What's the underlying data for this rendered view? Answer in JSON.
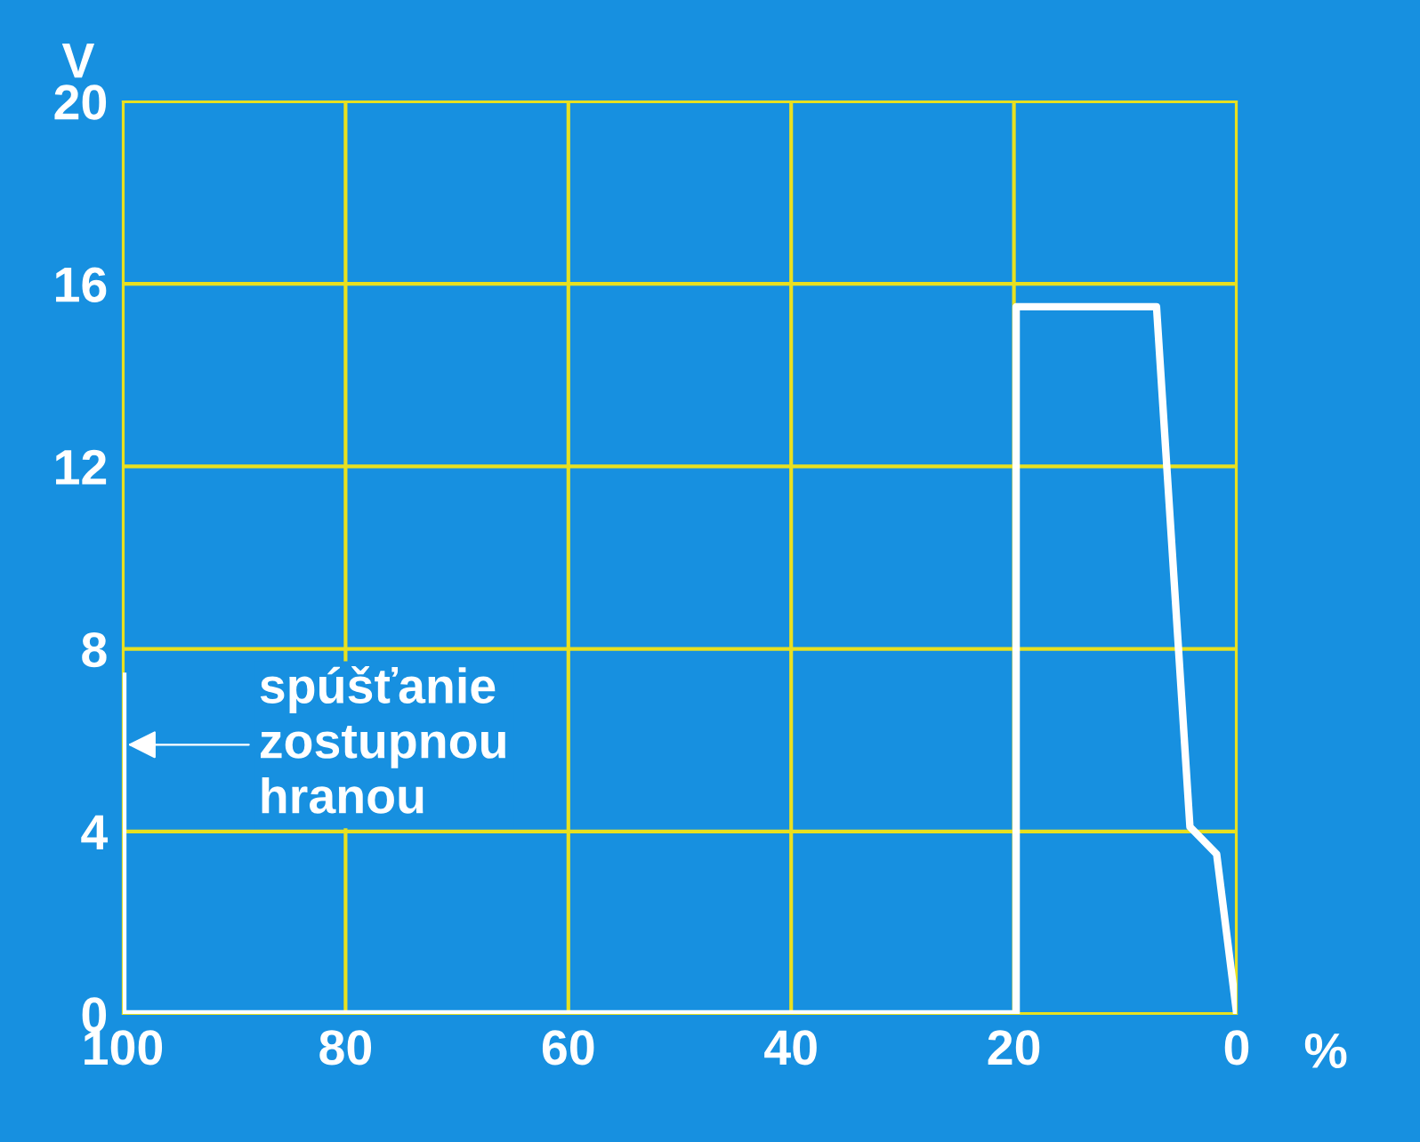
{
  "chart_data": {
    "type": "line",
    "xlabel": "%",
    "ylabel": "V",
    "x": [
      100,
      100,
      19.8,
      19.8,
      7.2,
      4.2,
      1.8,
      0
    ],
    "series": [
      {
        "color": "#ffffff",
        "values": [
          7.4,
          0,
          0,
          15.5,
          15.5,
          4.1,
          3.5,
          0
        ]
      }
    ],
    "xlim": [
      100,
      0
    ],
    "xticks": [
      100,
      80,
      60,
      40,
      20,
      0
    ],
    "ylim": [
      0,
      20
    ],
    "yticks": [
      0,
      4,
      8,
      12,
      16,
      20
    ],
    "grid": true,
    "annotations": [
      {
        "text": "spúšťanie\nzostupnou\nhranou",
        "x": 100,
        "y": 5.9
      }
    ]
  }
}
